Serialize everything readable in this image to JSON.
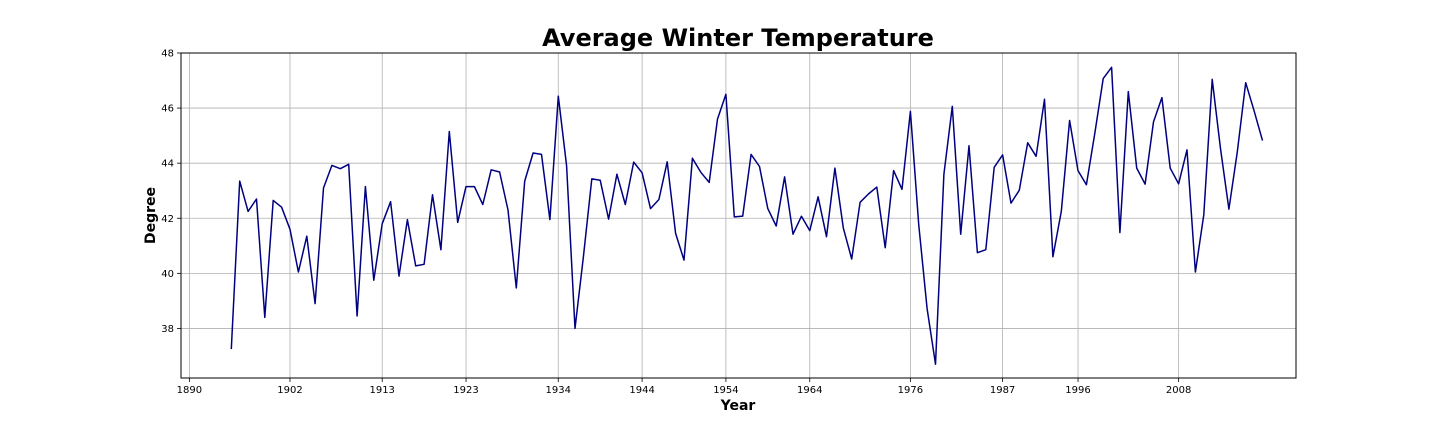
{
  "chart_data": {
    "type": "line",
    "title": "Average Winter Temperature",
    "xlabel": "Year",
    "ylabel": "Degree",
    "xlim": [
      1889,
      2022
    ],
    "ylim": [
      36.2,
      48
    ],
    "grid": true,
    "legend": "none",
    "line_color": "#000080",
    "x_ticks": [
      1890,
      1902,
      1913,
      1923,
      1934,
      1944,
      1954,
      1964,
      1976,
      1987,
      1996,
      2008
    ],
    "x_tick_labels": [
      "1890",
      "1902",
      "1913",
      "1923",
      "1934",
      "1944",
      "1954",
      "1964",
      "1976",
      "1987",
      "1996",
      "2008"
    ],
    "y_ticks": [
      38,
      40,
      42,
      44,
      46,
      48
    ],
    "y_tick_labels": [
      "38",
      "40",
      "42",
      "44",
      "46",
      "48"
    ],
    "series": [
      {
        "x": [
          1895,
          1896,
          1897,
          1898,
          1899,
          1900,
          1901,
          1902,
          1903,
          1904,
          1905,
          1906,
          1907,
          1908,
          1909,
          1910,
          1911,
          1912,
          1913,
          1914,
          1915,
          1916,
          1917,
          1918,
          1919,
          1920,
          1921,
          1922,
          1923,
          1924,
          1925,
          1926,
          1927,
          1928,
          1929,
          1930,
          1931,
          1932,
          1933,
          1934,
          1935,
          1936,
          1937,
          1938,
          1939,
          1940,
          1941,
          1942,
          1943,
          1944,
          1945,
          1946,
          1947,
          1948,
          1949,
          1950,
          1951,
          1952,
          1953,
          1954,
          1955,
          1956,
          1957,
          1958,
          1959,
          1960,
          1961,
          1962,
          1963,
          1964,
          1965,
          1966,
          1967,
          1968,
          1969,
          1970,
          1971,
          1972,
          1973,
          1974,
          1975,
          1976,
          1977,
          1978,
          1979,
          1980,
          1981,
          1982,
          1983,
          1984,
          1985,
          1986,
          1987,
          1988,
          1989,
          1990,
          1991,
          1992,
          1993,
          1994,
          1995,
          1996,
          1997,
          1998,
          1999,
          2000,
          2001,
          2002,
          2003,
          2004,
          2005,
          2006,
          2007,
          2008,
          2009,
          2010,
          2011,
          2012,
          2013,
          2014,
          2015,
          2016,
          2017,
          2018
        ],
        "values": [
          37.25,
          43.35,
          42.25,
          42.7,
          38.4,
          42.65,
          42.4,
          41.6,
          40.05,
          41.35,
          38.9,
          43.1,
          43.92,
          43.8,
          43.96,
          38.45,
          43.15,
          39.75,
          41.8,
          42.6,
          39.9,
          41.95,
          40.27,
          40.33,
          42.85,
          40.86,
          45.15,
          41.85,
          43.15,
          43.15,
          42.5,
          43.76,
          43.68,
          42.3,
          39.47,
          43.35,
          44.37,
          44.32,
          41.95,
          46.43,
          43.9,
          38.0,
          40.6,
          43.43,
          43.38,
          41.97,
          43.6,
          42.5,
          44.04,
          43.65,
          42.35,
          42.68,
          44.05,
          41.45,
          40.48,
          44.18,
          43.67,
          43.3,
          45.6,
          46.5,
          42.05,
          42.08,
          44.32,
          43.88,
          42.35,
          41.72,
          43.5,
          41.42,
          42.07,
          41.55,
          42.78,
          41.33,
          43.82,
          41.65,
          40.52,
          42.58,
          42.88,
          43.13,
          40.93,
          43.73,
          43.05,
          45.88,
          41.78,
          38.72,
          36.7,
          43.6,
          46.06,
          41.42,
          44.63,
          40.75,
          40.86,
          43.85,
          44.3,
          42.55,
          43.02,
          44.74,
          44.25,
          46.32,
          40.6,
          42.25,
          45.55,
          43.73,
          43.22,
          45.08,
          47.07,
          47.48,
          41.48,
          46.6,
          43.82,
          43.24,
          45.5,
          46.38,
          43.82,
          43.25,
          44.48,
          40.05,
          42.13,
          47.04,
          44.53,
          42.33,
          44.41,
          46.92,
          45.9,
          44.82
        ]
      }
    ]
  }
}
